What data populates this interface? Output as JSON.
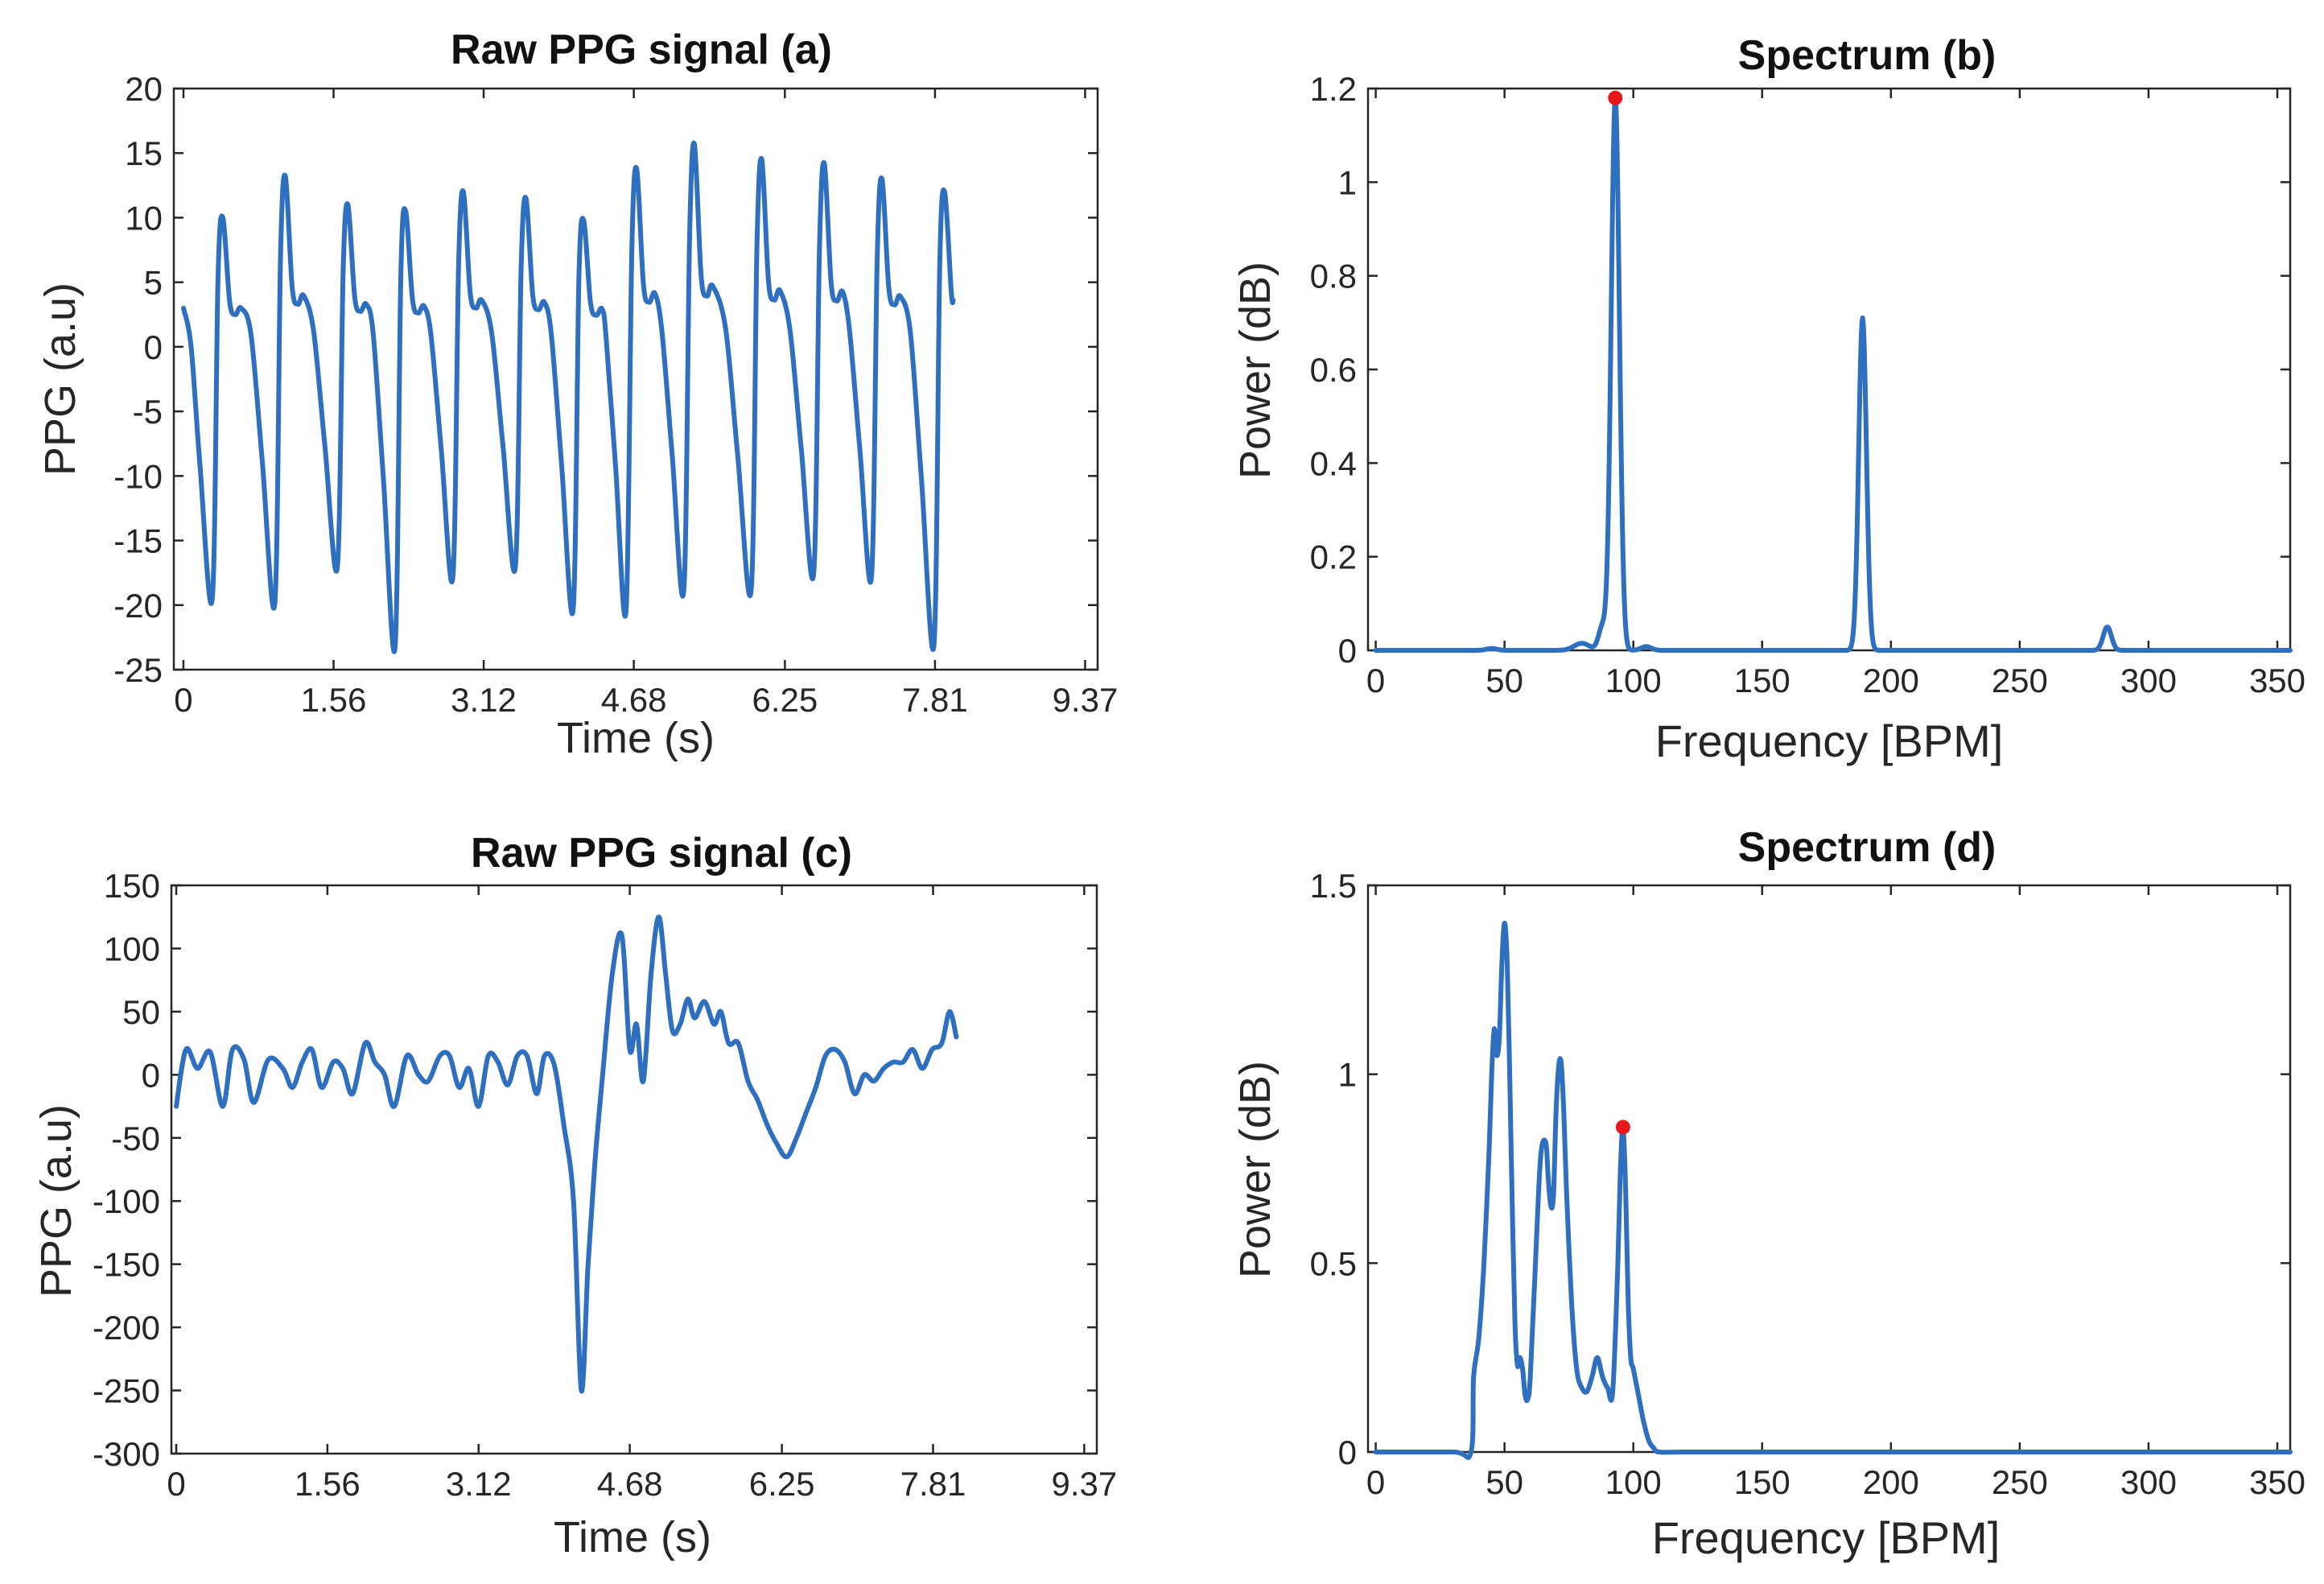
{
  "figure": {
    "panels": [
      {
        "id": "a",
        "title": "Raw PPG signal (a)",
        "xlabel": "Time (s)",
        "ylabel": "PPG (a.u)"
      },
      {
        "id": "b",
        "title": "Spectrum (b)",
        "xlabel": "Frequency [BPM]",
        "ylabel": "Power (dB)"
      },
      {
        "id": "c",
        "title": "Raw PPG signal (c)",
        "xlabel": "Time (s)",
        "ylabel": "PPG (a.u)"
      },
      {
        "id": "d",
        "title": "Spectrum (d)",
        "xlabel": "Frequency [BPM]",
        "ylabel": "Power (dB)"
      }
    ]
  },
  "colors": {
    "line": "#2F6FBF",
    "peak": "#E8191B",
    "axis": "#262626",
    "background": "#ffffff"
  },
  "chart_data": [
    {
      "panel": "a",
      "type": "line",
      "title": "Raw PPG signal (a)",
      "xlabel": "Time (s)",
      "ylabel": "PPG (a.u)",
      "xlim": [
        -0.1,
        9.5
      ],
      "ylim": [
        -25,
        20
      ],
      "xticks": [
        0,
        1.56,
        3.12,
        4.68,
        6.25,
        7.81,
        9.37
      ],
      "xtick_labels": [
        "0",
        "1.56",
        "3.12",
        "4.68",
        "6.25",
        "7.81",
        "9.37"
      ],
      "yticks": [
        -25,
        -20,
        -15,
        -10,
        -5,
        0,
        5,
        10,
        15,
        20
      ],
      "ytick_labels": [
        "-25",
        "-20",
        "-15",
        "-10",
        "-5",
        "0",
        "5",
        "10",
        "15",
        "20"
      ],
      "x_end": 8.0,
      "beats": [
        {
          "t": 0.3,
          "min": -19.5,
          "max": 10
        },
        {
          "t": 0.95,
          "min": -19.8,
          "max": 13.2
        },
        {
          "t": 1.6,
          "min": -17.0,
          "max": 11.0
        },
        {
          "t": 2.2,
          "min": -23.2,
          "max": 10.5
        },
        {
          "t": 2.8,
          "min": -17.8,
          "max": 12.0
        },
        {
          "t": 3.45,
          "min": -17.0,
          "max": 11.5
        },
        {
          "t": 4.05,
          "min": -20.3,
          "max": 9.8
        },
        {
          "t": 4.6,
          "min": -20.4,
          "max": 13.8
        },
        {
          "t": 5.2,
          "min": -18.8,
          "max": 15.7
        },
        {
          "t": 5.9,
          "min": -18.8,
          "max": 14.5
        },
        {
          "t": 6.55,
          "min": -17.5,
          "max": 14.2
        },
        {
          "t": 7.15,
          "min": -17.8,
          "max": 13.0
        },
        {
          "t": 7.8,
          "min": -23.0,
          "max": 12.0
        }
      ]
    },
    {
      "panel": "b",
      "type": "line",
      "title": "Spectrum (b)",
      "xlabel": "Frequency [BPM]",
      "ylabel": "Power (dB)",
      "xlim": [
        -3,
        355
      ],
      "ylim": [
        0,
        1.2
      ],
      "xticks": [
        0,
        50,
        100,
        150,
        200,
        250,
        300,
        350
      ],
      "xtick_labels": [
        "0",
        "50",
        "100",
        "150",
        "200",
        "250",
        "300",
        "350"
      ],
      "yticks": [
        0,
        0.2,
        0.4,
        0.6,
        0.8,
        1,
        1.2
      ],
      "ytick_labels": [
        "0",
        "0.2",
        "0.4",
        "0.6",
        "0.8",
        "1",
        "1.2"
      ],
      "peaks": [
        {
          "f": 93,
          "power": 1.18,
          "width": 1.6
        },
        {
          "f": 189,
          "power": 0.71,
          "width": 1.5
        },
        {
          "f": 284,
          "power": 0.05,
          "width": 1.6
        },
        {
          "f": 88,
          "power": 0.05,
          "width": 1.5
        },
        {
          "f": 80,
          "power": 0.015,
          "width": 3
        },
        {
          "f": 105,
          "power": 0.008,
          "width": 2
        },
        {
          "f": 45,
          "power": 0.004,
          "width": 2
        }
      ],
      "marked_peak": {
        "f": 93,
        "power": 1.18
      }
    },
    {
      "panel": "c",
      "type": "line",
      "title": "Raw PPG signal (c)",
      "xlabel": "Time (s)",
      "ylabel": "PPG (a.u)",
      "xlim": [
        -0.05,
        9.5
      ],
      "ylim": [
        -300,
        150
      ],
      "xticks": [
        0,
        1.56,
        3.12,
        4.68,
        6.25,
        7.81,
        9.37
      ],
      "xtick_labels": [
        "0",
        "1.56",
        "3.12",
        "4.68",
        "6.25",
        "7.81",
        "9.37"
      ],
      "yticks": [
        -300,
        -250,
        -200,
        -150,
        -100,
        -50,
        0,
        50,
        100,
        150
      ],
      "ytick_labels": [
        "-300",
        "-250",
        "-200",
        "-150",
        "-100",
        "-50",
        "0",
        "50",
        "100",
        "150"
      ],
      "x": [
        0.0,
        0.1,
        0.22,
        0.35,
        0.48,
        0.58,
        0.7,
        0.8,
        0.95,
        1.1,
        1.2,
        1.3,
        1.4,
        1.5,
        1.62,
        1.72,
        1.82,
        1.95,
        2.05,
        2.15,
        2.25,
        2.38,
        2.5,
        2.6,
        2.72,
        2.82,
        2.92,
        3.02,
        3.12,
        3.22,
        3.32,
        3.42,
        3.52,
        3.62,
        3.72,
        3.8,
        3.9,
        4.0,
        4.1,
        4.18,
        4.25,
        4.32,
        4.4,
        4.5,
        4.6,
        4.68,
        4.75,
        4.82,
        4.9,
        4.98,
        5.05,
        5.12,
        5.2,
        5.28,
        5.35,
        5.45,
        5.55,
        5.62,
        5.7,
        5.8,
        5.9,
        6.0,
        6.1,
        6.2,
        6.3,
        6.4,
        6.5,
        6.6,
        6.7,
        6.8,
        6.9,
        7.0,
        7.1,
        7.2,
        7.3,
        7.4,
        7.5,
        7.6,
        7.7,
        7.8,
        7.9,
        7.98,
        8.05
      ],
      "values": [
        -25,
        20,
        5,
        18,
        -25,
        20,
        12,
        -22,
        12,
        5,
        -10,
        10,
        20,
        -10,
        10,
        5,
        -15,
        25,
        10,
        0,
        -25,
        15,
        0,
        -5,
        15,
        15,
        -10,
        5,
        -25,
        15,
        10,
        -8,
        15,
        15,
        -15,
        15,
        8,
        -40,
        -100,
        -250,
        -150,
        -70,
        0,
        80,
        110,
        20,
        40,
        -5,
        80,
        125,
        80,
        35,
        40,
        60,
        45,
        58,
        40,
        50,
        25,
        25,
        -5,
        -20,
        -40,
        -55,
        -65,
        -50,
        -30,
        -10,
        15,
        20,
        10,
        -15,
        0,
        -5,
        5,
        10,
        10,
        20,
        5,
        20,
        25,
        50,
        30
      ]
    },
    {
      "panel": "d",
      "type": "line",
      "title": "Spectrum (d)",
      "xlabel": "Frequency [BPM]",
      "ylabel": "Power (dB)",
      "xlim": [
        -3,
        355
      ],
      "ylim": [
        0,
        1.5
      ],
      "xticks": [
        0,
        50,
        100,
        150,
        200,
        250,
        300,
        350
      ],
      "xtick_labels": [
        "0",
        "50",
        "100",
        "150",
        "200",
        "250",
        "300",
        "350"
      ],
      "yticks": [
        0,
        0.5,
        1,
        1.5
      ],
      "ytick_labels": [
        "0",
        "0.5",
        "1",
        "1.5"
      ],
      "x": [
        0,
        30,
        37,
        38,
        40,
        42,
        44,
        45,
        46,
        47,
        48,
        49,
        50,
        51,
        52,
        53,
        54,
        55,
        56,
        57,
        58,
        59,
        60,
        62,
        64,
        66,
        67,
        68,
        69,
        70,
        71,
        72,
        73,
        74,
        76,
        78,
        80,
        82,
        84,
        86,
        88,
        90,
        92,
        94,
        95,
        96,
        97,
        98,
        99,
        100,
        102,
        104,
        106,
        108,
        110,
        120,
        150,
        200,
        250,
        300,
        355
      ],
      "values": [
        0,
        0,
        0,
        0.2,
        0.3,
        0.5,
        0.8,
        1.0,
        1.12,
        1.05,
        1.1,
        1.3,
        1.4,
        1.3,
        1.0,
        0.65,
        0.35,
        0.23,
        0.25,
        0.22,
        0.15,
        0.14,
        0.2,
        0.5,
        0.78,
        0.82,
        0.72,
        0.65,
        0.68,
        0.9,
        1.02,
        1.03,
        0.9,
        0.7,
        0.4,
        0.22,
        0.17,
        0.16,
        0.2,
        0.25,
        0.2,
        0.17,
        0.16,
        0.5,
        0.75,
        0.86,
        0.7,
        0.4,
        0.25,
        0.22,
        0.15,
        0.08,
        0.03,
        0.01,
        0,
        0,
        0,
        0,
        0,
        0,
        0
      ],
      "marked_peak": {
        "f": 96,
        "power": 0.86
      }
    }
  ]
}
